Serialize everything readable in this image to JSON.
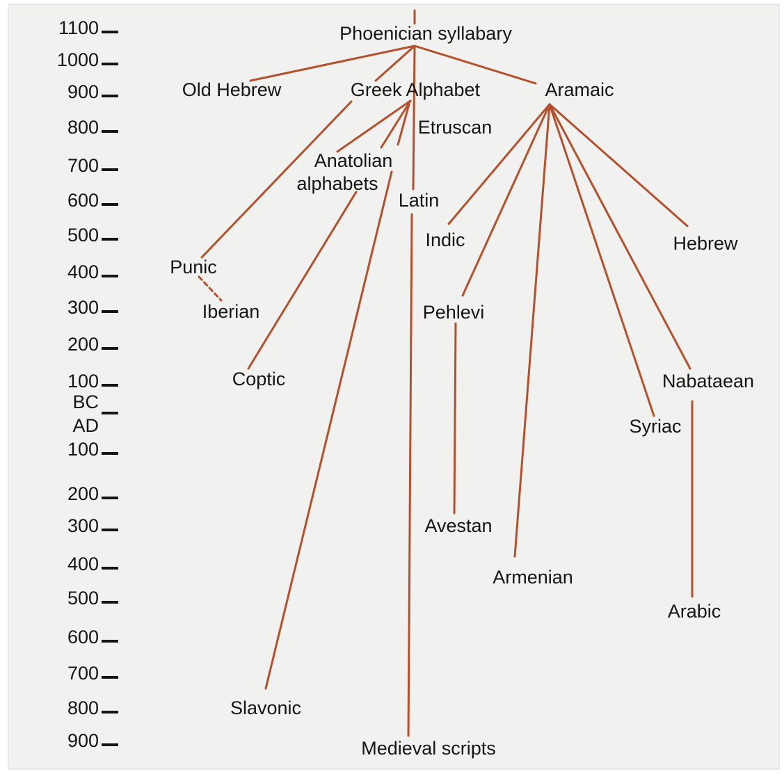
{
  "timeline": [
    "1100",
    "1000",
    "900",
    "800",
    "700",
    "600",
    "500",
    "400",
    "300",
    "200",
    "100",
    "BC",
    "AD",
    "100",
    "200",
    "300",
    "400",
    "500",
    "600",
    "700",
    "800",
    "900"
  ],
  "nodes": [
    {
      "label": "Phoenician syllabary"
    },
    {
      "label": "Old Hebrew"
    },
    {
      "label": "Greek Alphabet"
    },
    {
      "label": "Aramaic"
    },
    {
      "label": "Etruscan"
    },
    {
      "label": [
        "Anatolian",
        "alphabets"
      ]
    },
    {
      "label": "Latin"
    },
    {
      "label": "Indic"
    },
    {
      "label": "Hebrew"
    },
    {
      "label": "Punic"
    },
    {
      "label": "Iberian"
    },
    {
      "label": "Pehlevi"
    },
    {
      "label": "Coptic"
    },
    {
      "label": "Nabataean"
    },
    {
      "label": "Syriac"
    },
    {
      "label": "Avestan"
    },
    {
      "label": "Armenian"
    },
    {
      "label": "Arabic"
    },
    {
      "label": "Slavonic"
    },
    {
      "label": "Medieval scripts"
    }
  ]
}
